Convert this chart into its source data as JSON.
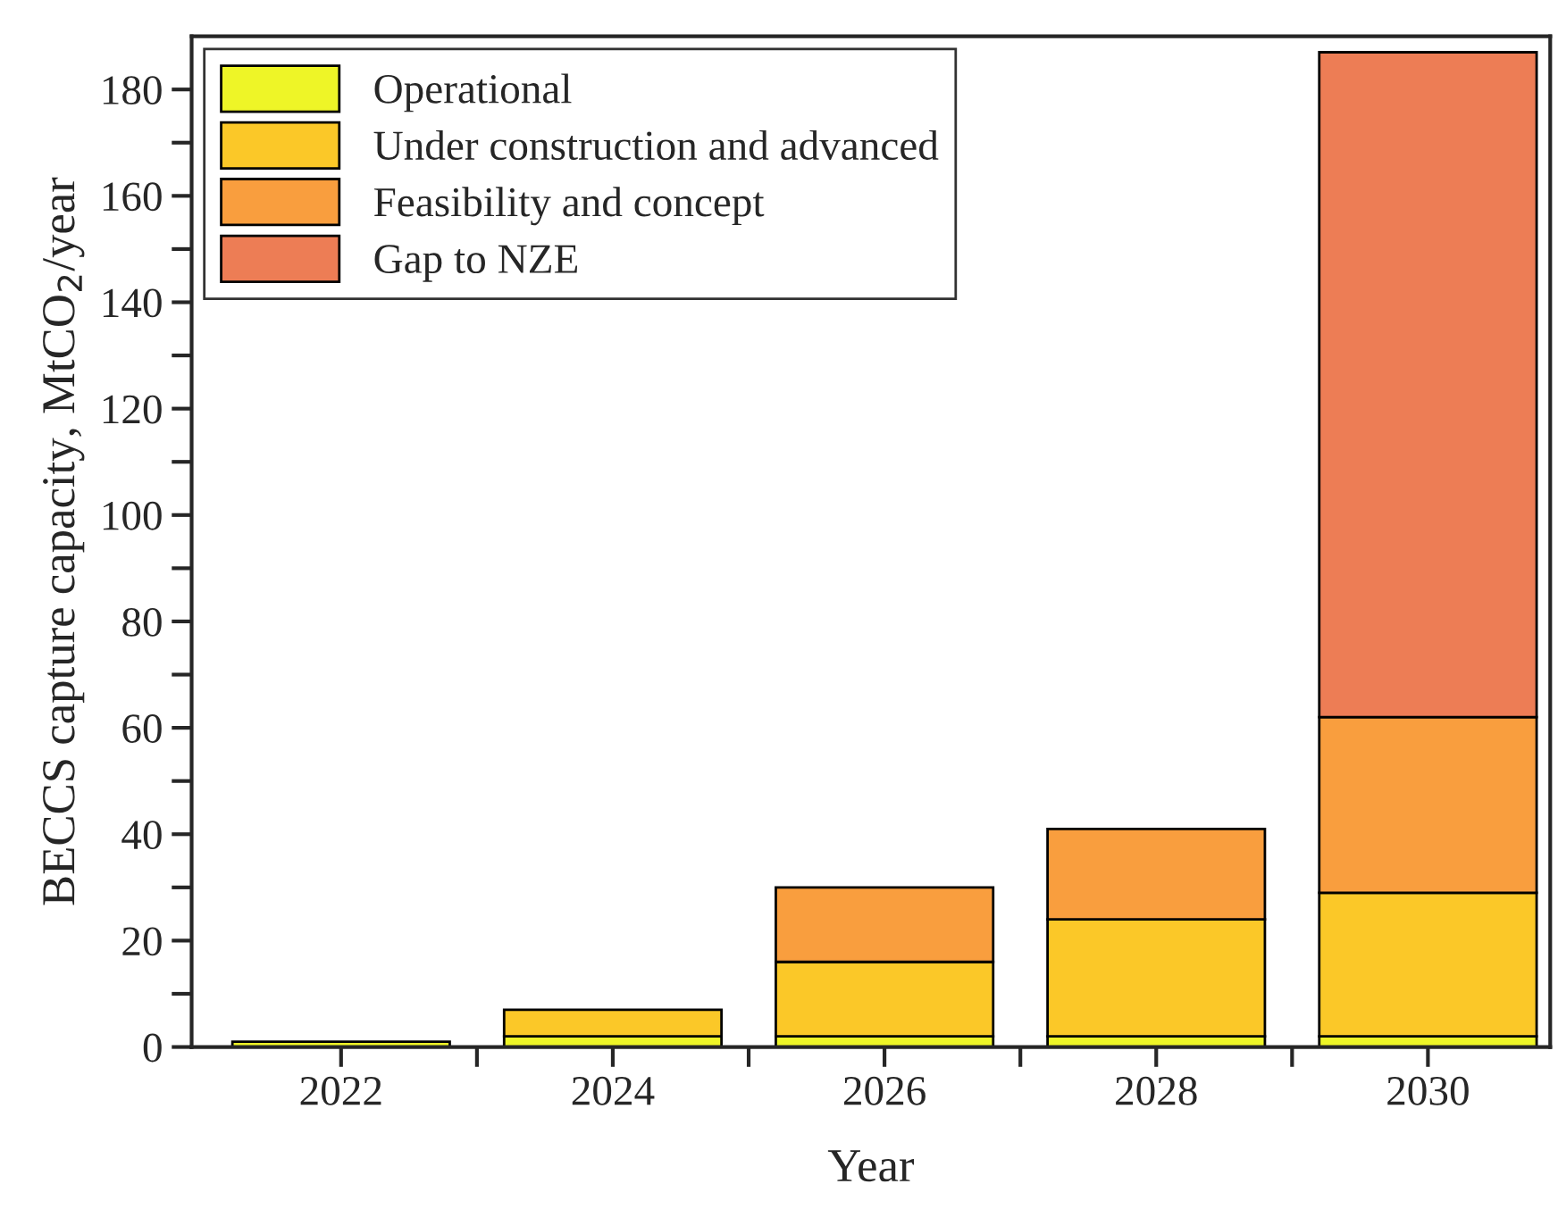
{
  "chart_data": {
    "type": "bar",
    "stacked": true,
    "xlabel": "Year",
    "ylabel": "BECCS capture capacity, MtCO$_{2}$/year",
    "x": [
      2022,
      2024,
      2026,
      2028,
      2030
    ],
    "series": [
      {
        "name": "Operational",
        "color": "#eef527",
        "values": [
          1,
          2,
          2,
          2,
          2
        ]
      },
      {
        "name": "Under construction and advanced",
        "color": "#fbc828",
        "values": [
          null,
          5,
          14,
          22,
          27
        ]
      },
      {
        "name": "Feasibility and concept",
        "color": "#f99e3e",
        "values": [
          null,
          null,
          14,
          17,
          33
        ]
      },
      {
        "name": "Gap to NZE",
        "color": "#ed7d55",
        "values": [
          null,
          null,
          null,
          null,
          125
        ]
      }
    ],
    "xlim": [
      2020.9,
      2030.9
    ],
    "ylim": [
      0,
      190
    ],
    "xticks": [
      2022,
      {
        "value": 2023,
        "label": null
      },
      2024,
      {
        "value": 2025,
        "label": null
      },
      2026,
      {
        "value": 2027,
        "label": null
      },
      2028,
      {
        "value": 2029,
        "label": null
      },
      2030
    ],
    "yticks": [
      0,
      {
        "value": 10,
        "label": null
      },
      20,
      {
        "value": 30,
        "label": null
      },
      40,
      {
        "value": 50,
        "label": null
      },
      60,
      {
        "value": 70,
        "label": null
      },
      80,
      {
        "value": 90,
        "label": null
      },
      100,
      {
        "value": 110,
        "label": null
      },
      120,
      {
        "value": 130,
        "label": null
      },
      140,
      {
        "value": 150,
        "label": null
      },
      160,
      {
        "value": 170,
        "label": null
      },
      180
    ],
    "grid": false,
    "legend": "top left"
  }
}
